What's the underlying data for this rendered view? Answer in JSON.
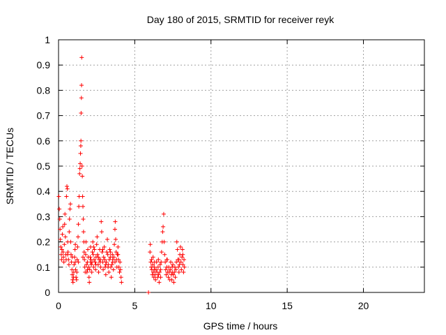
{
  "chart_data": {
    "type": "scatter",
    "title": "Day 180 of 2015, SRMTID for receiver reyk",
    "xlabel": "GPS time / hours",
    "ylabel": "SRMTID / TECUs",
    "xlim": [
      0,
      24
    ],
    "ylim": [
      0,
      1
    ],
    "x_ticks": [
      0,
      5,
      10,
      15,
      20
    ],
    "x_tick_labels": [
      "0",
      "5",
      "10",
      "15",
      "20"
    ],
    "y_ticks": [
      0,
      0.1,
      0.2,
      0.3,
      0.4,
      0.5,
      0.6,
      0.7,
      0.8,
      0.9,
      1
    ],
    "y_tick_labels": [
      "0",
      "0.1",
      "0.2",
      "0.3",
      "0.4",
      "0.5",
      "0.6",
      "0.7",
      "0.8",
      "0.9",
      "1"
    ],
    "grid": true,
    "marker": "+",
    "color": "#ff0000",
    "series": [
      {
        "name": "reyk",
        "points": [
          [
            0.02,
            0.38
          ],
          [
            0.05,
            0.33
          ],
          [
            0.08,
            0.29
          ],
          [
            0.1,
            0.25
          ],
          [
            0.12,
            0.21
          ],
          [
            0.15,
            0.18
          ],
          [
            0.18,
            0.15
          ],
          [
            0.2,
            0.13
          ],
          [
            0.22,
            0.17
          ],
          [
            0.25,
            0.23
          ],
          [
            0.28,
            0.26
          ],
          [
            0.3,
            0.16
          ],
          [
            0.32,
            0.14
          ],
          [
            0.35,
            0.12
          ],
          [
            0.38,
            0.19
          ],
          [
            0.4,
            0.27
          ],
          [
            0.42,
            0.31
          ],
          [
            0.45,
            0.22
          ],
          [
            0.48,
            0.15
          ],
          [
            0.5,
            0.13
          ],
          [
            0.52,
            0.38
          ],
          [
            0.55,
            0.42
          ],
          [
            0.58,
            0.41
          ],
          [
            0.6,
            0.2
          ],
          [
            0.62,
            0.16
          ],
          [
            0.65,
            0.13
          ],
          [
            0.68,
            0.11
          ],
          [
            0.7,
            0.24
          ],
          [
            0.72,
            0.29
          ],
          [
            0.75,
            0.33
          ],
          [
            0.78,
            0.35
          ],
          [
            0.8,
            0.2
          ],
          [
            0.82,
            0.15
          ],
          [
            0.85,
            0.12
          ],
          [
            0.88,
            0.09
          ],
          [
            0.9,
            0.07
          ],
          [
            0.92,
            0.05
          ],
          [
            0.95,
            0.04
          ],
          [
            0.98,
            0.06
          ],
          [
            1.0,
            0.08
          ],
          [
            1.02,
            0.11
          ],
          [
            1.05,
            0.14
          ],
          [
            1.08,
            0.17
          ],
          [
            1.1,
            0.12
          ],
          [
            1.12,
            0.09
          ],
          [
            1.15,
            0.06
          ],
          [
            1.18,
            0.05
          ],
          [
            1.2,
            0.08
          ],
          [
            1.22,
            0.13
          ],
          [
            1.25,
            0.18
          ],
          [
            1.28,
            0.22
          ],
          [
            1.3,
            0.27
          ],
          [
            1.33,
            0.34
          ],
          [
            1.35,
            0.38
          ],
          [
            1.38,
            0.47
          ],
          [
            1.4,
            0.49
          ],
          [
            1.42,
            0.51
          ],
          [
            1.44,
            0.55
          ],
          [
            1.46,
            0.58
          ],
          [
            1.47,
            0.6
          ],
          [
            1.48,
            0.71
          ],
          [
            1.5,
            0.77
          ],
          [
            1.51,
            0.82
          ],
          [
            1.52,
            0.93
          ],
          [
            1.54,
            0.5
          ],
          [
            1.56,
            0.46
          ],
          [
            1.58,
            0.38
          ],
          [
            1.6,
            0.34
          ],
          [
            1.62,
            0.29
          ],
          [
            1.64,
            0.24
          ],
          [
            1.66,
            0.2
          ],
          [
            1.68,
            0.16
          ],
          [
            1.7,
            0.13
          ],
          [
            1.72,
            0.1
          ],
          [
            1.75,
            0.08
          ],
          [
            1.78,
            0.15
          ],
          [
            1.8,
            0.2
          ],
          [
            1.83,
            0.11
          ],
          [
            1.86,
            0.08
          ],
          [
            1.9,
            0.12
          ],
          [
            1.92,
            0.17
          ],
          [
            1.95,
            0.14
          ],
          [
            1.98,
            0.1
          ],
          [
            2.0,
            0.06
          ],
          [
            2.02,
            0.04
          ],
          [
            2.05,
            0.09
          ],
          [
            2.08,
            0.14
          ],
          [
            2.1,
            0.18
          ],
          [
            2.12,
            0.13
          ],
          [
            2.15,
            0.11
          ],
          [
            2.18,
            0.08
          ],
          [
            2.2,
            0.12
          ],
          [
            2.22,
            0.16
          ],
          [
            2.25,
            0.2
          ],
          [
            2.28,
            0.15
          ],
          [
            2.3,
            0.1
          ],
          [
            2.33,
            0.13
          ],
          [
            2.36,
            0.17
          ],
          [
            2.4,
            0.12
          ],
          [
            2.43,
            0.09
          ],
          [
            2.46,
            0.14
          ],
          [
            2.5,
            0.19
          ],
          [
            2.53,
            0.22
          ],
          [
            2.56,
            0.15
          ],
          [
            2.6,
            0.11
          ],
          [
            2.63,
            0.08
          ],
          [
            2.66,
            0.13
          ],
          [
            2.7,
            0.17
          ],
          [
            2.73,
            0.12
          ],
          [
            2.76,
            0.1
          ],
          [
            2.8,
            0.28
          ],
          [
            2.83,
            0.24
          ],
          [
            2.86,
            0.16
          ],
          [
            2.9,
            0.12
          ],
          [
            2.93,
            0.09
          ],
          [
            2.96,
            0.14
          ],
          [
            3.0,
            0.18
          ],
          [
            3.03,
            0.13
          ],
          [
            3.06,
            0.1
          ],
          [
            3.1,
            0.07
          ],
          [
            3.13,
            0.12
          ],
          [
            3.16,
            0.16
          ],
          [
            3.2,
            0.21
          ],
          [
            3.23,
            0.15
          ],
          [
            3.26,
            0.11
          ],
          [
            3.3,
            0.08
          ],
          [
            3.33,
            0.13
          ],
          [
            3.36,
            0.17
          ],
          [
            3.4,
            0.14
          ],
          [
            3.43,
            0.1
          ],
          [
            3.46,
            0.06
          ],
          [
            3.5,
            0.11
          ],
          [
            3.53,
            0.15
          ],
          [
            3.56,
            0.12
          ],
          [
            3.6,
            0.09
          ],
          [
            3.63,
            0.14
          ],
          [
            3.66,
            0.19
          ],
          [
            3.7,
            0.25
          ],
          [
            3.72,
            0.28
          ],
          [
            3.75,
            0.21
          ],
          [
            3.78,
            0.16
          ],
          [
            3.8,
            0.13
          ],
          [
            3.83,
            0.1
          ],
          [
            3.86,
            0.15
          ],
          [
            3.9,
            0.18
          ],
          [
            3.93,
            0.13
          ],
          [
            3.96,
            0.1
          ],
          [
            4.0,
            0.08
          ],
          [
            4.03,
            0.12
          ],
          [
            4.06,
            0.09
          ],
          [
            4.1,
            0.06
          ],
          [
            4.13,
            0.04
          ],
          [
            0.6,
            0.15
          ],
          [
            0.9,
            0.14
          ],
          [
            1.1,
            0.19
          ],
          [
            1.3,
            0.12
          ],
          [
            1.6,
            0.14
          ],
          [
            1.9,
            0.09
          ],
          [
            2.3,
            0.18
          ],
          [
            2.6,
            0.14
          ],
          [
            2.9,
            0.17
          ],
          [
            3.1,
            0.11
          ],
          [
            3.4,
            0.16
          ],
          [
            3.7,
            0.12
          ],
          [
            3.9,
            0.15
          ],
          [
            2.1,
            0.12
          ],
          [
            2.45,
            0.11
          ],
          [
            2.75,
            0.13
          ],
          [
            3.25,
            0.1
          ],
          [
            3.55,
            0.13
          ],
          [
            5.9,
            0.0
          ],
          [
            6.0,
            0.16
          ],
          [
            6.02,
            0.19
          ],
          [
            6.05,
            0.12
          ],
          [
            6.08,
            0.1
          ],
          [
            6.1,
            0.13
          ],
          [
            6.12,
            0.09
          ],
          [
            6.15,
            0.07
          ],
          [
            6.18,
            0.11
          ],
          [
            6.2,
            0.14
          ],
          [
            6.22,
            0.08
          ],
          [
            6.25,
            0.06
          ],
          [
            6.28,
            0.1
          ],
          [
            6.3,
            0.12
          ],
          [
            6.33,
            0.07
          ],
          [
            6.36,
            0.05
          ],
          [
            6.4,
            0.09
          ],
          [
            6.43,
            0.12
          ],
          [
            6.46,
            0.08
          ],
          [
            6.5,
            0.06
          ],
          [
            6.53,
            0.1
          ],
          [
            6.56,
            0.07
          ],
          [
            6.6,
            0.04
          ],
          [
            6.63,
            0.08
          ],
          [
            6.66,
            0.11
          ],
          [
            6.7,
            0.09
          ],
          [
            6.73,
            0.12
          ],
          [
            6.76,
            0.16
          ],
          [
            6.8,
            0.2
          ],
          [
            6.83,
            0.24
          ],
          [
            6.86,
            0.26
          ],
          [
            6.9,
            0.31
          ],
          [
            6.93,
            0.2
          ],
          [
            6.96,
            0.15
          ],
          [
            7.0,
            0.12
          ],
          [
            7.03,
            0.09
          ],
          [
            7.06,
            0.07
          ],
          [
            7.1,
            0.1
          ],
          [
            7.13,
            0.13
          ],
          [
            7.16,
            0.08
          ],
          [
            7.2,
            0.06
          ],
          [
            7.23,
            0.1
          ],
          [
            7.26,
            0.08
          ],
          [
            7.3,
            0.05
          ],
          [
            7.33,
            0.09
          ],
          [
            7.36,
            0.12
          ],
          [
            7.4,
            0.07
          ],
          [
            7.43,
            0.05
          ],
          [
            7.46,
            0.08
          ],
          [
            7.5,
            0.11
          ],
          [
            7.53,
            0.07
          ],
          [
            7.56,
            0.04
          ],
          [
            7.6,
            0.08
          ],
          [
            7.63,
            0.1
          ],
          [
            7.66,
            0.06
          ],
          [
            7.7,
            0.09
          ],
          [
            7.73,
            0.12
          ],
          [
            7.76,
            0.2
          ],
          [
            7.8,
            0.17
          ],
          [
            7.83,
            0.13
          ],
          [
            7.86,
            0.1
          ],
          [
            7.9,
            0.08
          ],
          [
            7.93,
            0.11
          ],
          [
            7.96,
            0.15
          ],
          [
            8.0,
            0.18
          ],
          [
            8.03,
            0.12
          ],
          [
            8.06,
            0.09
          ],
          [
            8.1,
            0.14
          ],
          [
            8.13,
            0.17
          ],
          [
            8.16,
            0.11
          ],
          [
            8.2,
            0.08
          ],
          [
            8.23,
            0.13
          ],
          [
            8.26,
            0.1
          ],
          [
            6.3,
            0.09
          ],
          [
            6.7,
            0.06
          ],
          [
            7.1,
            0.13
          ],
          [
            7.45,
            0.1
          ],
          [
            7.9,
            0.13
          ],
          [
            8.15,
            0.15
          ],
          [
            6.55,
            0.13
          ]
        ]
      }
    ]
  }
}
